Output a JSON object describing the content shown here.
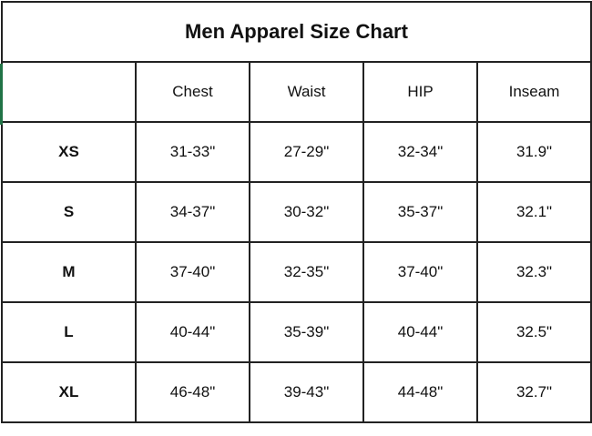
{
  "title": "Men Apparel Size Chart",
  "columns": [
    "",
    "Chest",
    "Waist",
    "HIP",
    "Inseam"
  ],
  "rows": [
    {
      "size": "XS",
      "chest": "31-33\"",
      "waist": "27-29\"",
      "hip": "32-34\"",
      "inseam": "31.9\""
    },
    {
      "size": "S",
      "chest": "34-37\"",
      "waist": "30-32\"",
      "hip": "35-37\"",
      "inseam": "32.1\""
    },
    {
      "size": "M",
      "chest": "37-40\"",
      "waist": "32-35\"",
      "hip": "37-40\"",
      "inseam": "32.3\""
    },
    {
      "size": "L",
      "chest": "40-44\"",
      "waist": "35-39\"",
      "hip": "40-44\"",
      "inseam": "32.5\""
    },
    {
      "size": "XL",
      "chest": "46-48\"",
      "waist": "39-43\"",
      "hip": "44-48\"",
      "inseam": "32.7\""
    }
  ],
  "colors": {
    "border": "#222222",
    "selection_marker": "#217346"
  }
}
